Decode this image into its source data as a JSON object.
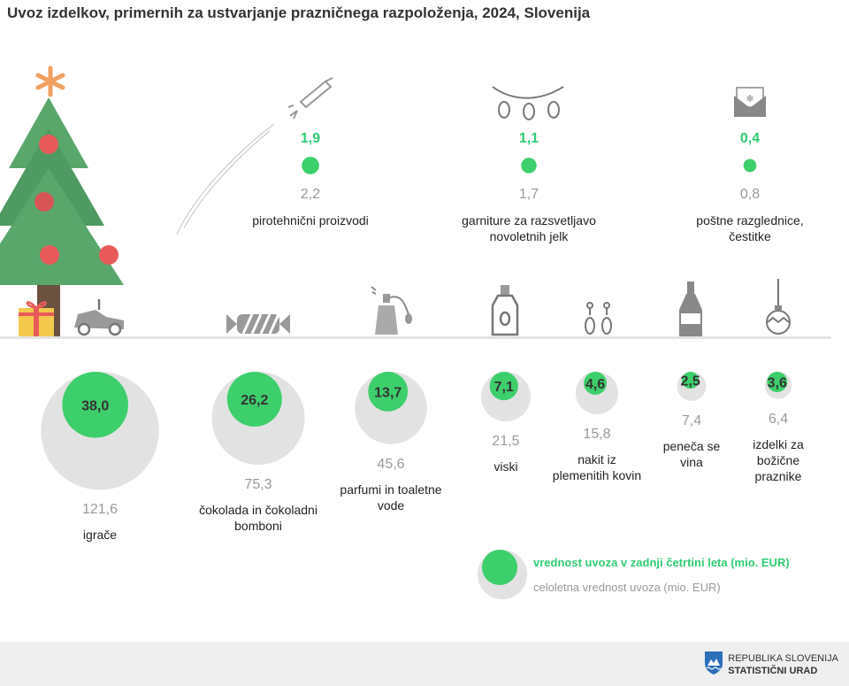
{
  "title": "Uvoz izdelkov, primernih za ustvarjanje prazničnega razpoloženja, 2024, Slovenija",
  "colors": {
    "quarter": "#3dcf6b",
    "annual": "#e2e2e2",
    "quarter_text": "#2ecc71",
    "annual_text": "#999999",
    "tree": "#4a9a5e",
    "ornament": "#e85a5a",
    "star": "#f0a060"
  },
  "chart_data": {
    "type": "bubble",
    "unit": "mio. EUR",
    "top_items": [
      {
        "label": "pirotehnični proizvodi",
        "quarter": 1.9,
        "annual": 2.2,
        "quarter_label": "1,9",
        "annual_label": "2,2",
        "icon": "firework-rocket-icon"
      },
      {
        "label": "garniture za razsvetljavo novoletnih jelk",
        "quarter": 1.1,
        "annual": 1.7,
        "quarter_label": "1,1",
        "annual_label": "1,7",
        "icon": "string-lights-icon"
      },
      {
        "label": "poštne razglednice, čestitke",
        "quarter": 0.4,
        "annual": 0.8,
        "quarter_label": "0,4",
        "annual_label": "0,8",
        "icon": "envelope-card-icon"
      }
    ],
    "bottom_items": [
      {
        "label": "igrače",
        "quarter": 38.0,
        "annual": 121.6,
        "quarter_label": "38,0",
        "annual_label": "121,6",
        "icon": "toy-car-icon"
      },
      {
        "label": "čokolada in čokoladni bomboni",
        "quarter": 26.2,
        "annual": 75.3,
        "quarter_label": "26,2",
        "annual_label": "75,3",
        "icon": "candy-icon"
      },
      {
        "label": "parfumi in toaletne vode",
        "quarter": 13.7,
        "annual": 45.6,
        "quarter_label": "13,7",
        "annual_label": "45,6",
        "icon": "perfume-bottle-icon"
      },
      {
        "label": "viski",
        "quarter": 7.1,
        "annual": 21.5,
        "quarter_label": "7,1",
        "annual_label": "21,5",
        "icon": "whisky-bottle-icon"
      },
      {
        "label": "nakit iz plemenitih kovin",
        "quarter": 4.6,
        "annual": 15.8,
        "quarter_label": "4,6",
        "annual_label": "15,8",
        "icon": "earrings-icon"
      },
      {
        "label": "peneča se vina",
        "quarter": 2.5,
        "annual": 7.4,
        "quarter_label": "2,5",
        "annual_label": "7,4",
        "icon": "champagne-bottle-icon"
      },
      {
        "label": "izdelki za božične praznike",
        "quarter": 3.6,
        "annual": 6.4,
        "quarter_label": "3,6",
        "annual_label": "6,4",
        "icon": "christmas-bauble-icon"
      }
    ]
  },
  "legend": {
    "quarter": "vrednost uvoza v zadnji četrtini leta (mio. EUR)",
    "annual": "celoletna vrednost uvoza (mio. EUR)"
  },
  "footer": {
    "line1": "REPUBLIKA SLOVENIJA",
    "line2": "STATISTIČNI URAD"
  }
}
